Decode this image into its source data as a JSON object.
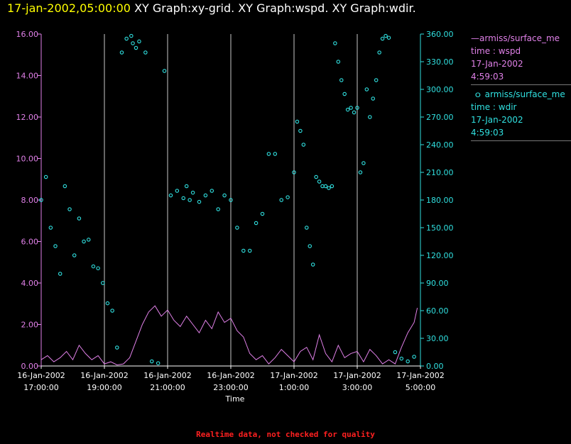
{
  "header": {
    "timestamp": "17-jan-2002,05:00:00",
    "title": "XY Graph:xy-grid.  XY Graph:wspd.  XY Graph:wdir."
  },
  "footer": {
    "note": "Realtime data, not checked for quality"
  },
  "legend": [
    {
      "line1": "armiss/surface_me",
      "line2": "time : wspd",
      "line3": "17-Jan-2002",
      "line4": "4:59:03"
    },
    {
      "line1": "armiss/surface_me",
      "line2": "time : wdir",
      "line3": "17-Jan-2002",
      "line4": "4:59:03"
    }
  ],
  "colors": {
    "wspd": "#e080e8",
    "wdir": "#30e0e0",
    "grid": "#c8c8c8",
    "timestamp": "#ffff00",
    "footer": "#ff2020"
  },
  "chart_data": {
    "type": "line",
    "xlabel": "Time",
    "x_ticks": [
      {
        "l1": "16-Jan-2002",
        "l2": "17:00:00"
      },
      {
        "l1": "16-Jan-2002",
        "l2": "19:00:00"
      },
      {
        "l1": "16-Jan-2002",
        "l2": "21:00:00"
      },
      {
        "l1": "16-Jan-2002",
        "l2": "23:00:00"
      },
      {
        "l1": "17-Jan-2002",
        "l2": "1:00:00"
      },
      {
        "l1": "17-Jan-2002",
        "l2": "3:00:00"
      },
      {
        "l1": "17-Jan-2002",
        "l2": "5:00:00"
      }
    ],
    "x_range_hours": [
      0,
      12
    ],
    "y_left": {
      "min": 0,
      "max": 16,
      "ticks": [
        "0.00",
        "2.00",
        "4.00",
        "6.00",
        "8.00",
        "10.00",
        "12.00",
        "14.00",
        "16.00"
      ]
    },
    "y_right": {
      "min": 0,
      "max": 360,
      "ticks": [
        "0.00",
        "30.00",
        "60.00",
        "90.00",
        "120.00",
        "150.00",
        "180.00",
        "210.00",
        "240.00",
        "270.00",
        "300.00",
        "330.00",
        "360.00"
      ]
    },
    "grid_vertical": true,
    "series": [
      {
        "key": "wspd",
        "style": "line",
        "axis": "left",
        "x_hours": [
          0.0,
          0.2,
          0.4,
          0.6,
          0.8,
          1.0,
          1.2,
          1.4,
          1.6,
          1.8,
          2.0,
          2.2,
          2.4,
          2.6,
          2.8,
          3.0,
          3.2,
          3.4,
          3.6,
          3.8,
          4.0,
          4.2,
          4.4,
          4.6,
          4.8,
          5.0,
          5.2,
          5.4,
          5.6,
          5.8,
          6.0,
          6.2,
          6.4,
          6.6,
          6.8,
          7.0,
          7.2,
          7.4,
          7.6,
          7.8,
          8.0,
          8.2,
          8.4,
          8.6,
          8.8,
          9.0,
          9.2,
          9.4,
          9.6,
          9.8,
          10.0,
          10.2,
          10.4,
          10.6,
          10.8,
          11.0,
          11.2,
          11.4,
          11.6,
          11.8,
          11.9
        ],
        "values": [
          0.3,
          0.5,
          0.2,
          0.4,
          0.7,
          0.3,
          1.0,
          0.6,
          0.3,
          0.5,
          0.1,
          0.2,
          0.05,
          0.1,
          0.4,
          1.2,
          2.0,
          2.6,
          2.9,
          2.4,
          2.7,
          2.2,
          1.9,
          2.4,
          2.0,
          1.6,
          2.2,
          1.8,
          2.6,
          2.1,
          2.3,
          1.7,
          1.4,
          0.6,
          0.3,
          0.5,
          0.1,
          0.4,
          0.8,
          0.5,
          0.2,
          0.7,
          0.9,
          0.3,
          1.5,
          0.6,
          0.2,
          1.0,
          0.4,
          0.6,
          0.7,
          0.2,
          0.8,
          0.5,
          0.1,
          0.3,
          0.1,
          0.9,
          1.6,
          2.1,
          2.8
        ]
      },
      {
        "key": "wdir",
        "style": "scatter",
        "axis": "right",
        "x_hours": [
          0.0,
          0.15,
          0.3,
          0.45,
          0.6,
          0.75,
          0.9,
          1.05,
          1.2,
          1.35,
          1.5,
          1.65,
          1.8,
          1.95,
          2.1,
          2.25,
          2.4,
          2.55,
          2.7,
          2.85,
          2.9,
          3.0,
          3.1,
          3.3,
          3.5,
          3.7,
          3.9,
          4.1,
          4.3,
          4.5,
          4.6,
          4.7,
          4.8,
          5.0,
          5.2,
          5.4,
          5.6,
          5.8,
          6.0,
          6.2,
          6.4,
          6.6,
          6.8,
          7.0,
          7.2,
          7.4,
          7.6,
          7.8,
          8.0,
          8.1,
          8.2,
          8.3,
          8.4,
          8.5,
          8.6,
          8.7,
          8.8,
          8.9,
          9.0,
          9.1,
          9.2,
          9.3,
          9.4,
          9.5,
          9.6,
          9.7,
          9.8,
          9.9,
          10.0,
          10.1,
          10.2,
          10.3,
          10.4,
          10.5,
          10.6,
          10.7,
          10.8,
          10.9,
          11.0,
          11.2,
          11.4,
          11.6,
          11.8
        ],
        "values": [
          180,
          205,
          150,
          130,
          100,
          195,
          170,
          120,
          160,
          135,
          137,
          108,
          106,
          90,
          68,
          60,
          20,
          340,
          355,
          358,
          350,
          345,
          352,
          340,
          5,
          3,
          320,
          185,
          190,
          182,
          195,
          180,
          188,
          178,
          185,
          190,
          170,
          185,
          180,
          150,
          125,
          125,
          155,
          165,
          230,
          230,
          180,
          183,
          210,
          265,
          255,
          240,
          150,
          130,
          110,
          205,
          200,
          195,
          195,
          193,
          195,
          350,
          330,
          310,
          295,
          278,
          280,
          275,
          280,
          210,
          220,
          300,
          270,
          290,
          310,
          340,
          355,
          358,
          356,
          15,
          8,
          5,
          10
        ]
      }
    ]
  }
}
